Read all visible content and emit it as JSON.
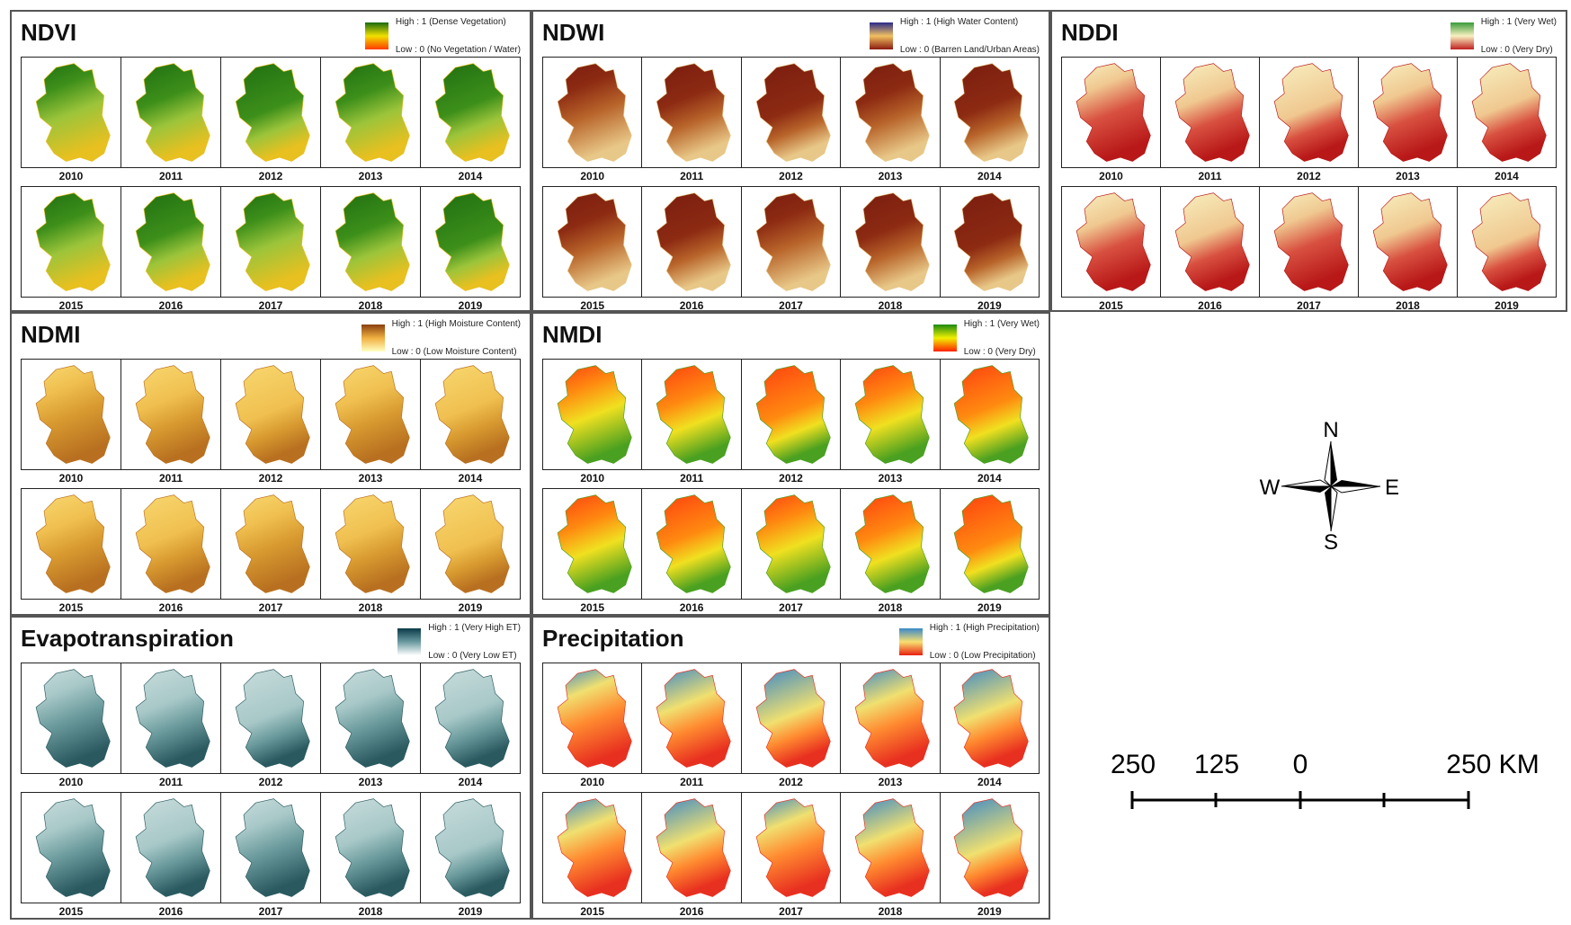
{
  "years_row1": [
    "2010",
    "2011",
    "2012",
    "2013",
    "2014"
  ],
  "years_row2": [
    "2015",
    "2016",
    "2017",
    "2018",
    "2019"
  ],
  "panels": [
    {
      "id": "ndvi",
      "title": "NDVI",
      "legend_high": "High : 1 (Dense Vegetation)",
      "legend_low": "Low : 0 (No Vegetation / Water)",
      "colors": [
        "#1f6e12",
        "#3d8f1a",
        "#9cc43a",
        "#e8c020"
      ],
      "ramp": [
        "#1a6b10",
        "#f0e000",
        "#ff3a00"
      ]
    },
    {
      "id": "ndwi",
      "title": "NDWI",
      "legend_high": "High : 1 (High Water Content)",
      "legend_low": "Low : 0 (Barren Land/Urban Areas)",
      "colors": [
        "#7a1d10",
        "#8c2a12",
        "#b8642a",
        "#e8c888"
      ],
      "ramp": [
        "#2a2a8a",
        "#f0c060",
        "#8a1a10"
      ]
    },
    {
      "id": "nddi",
      "title": "NDDI",
      "legend_high": "High : 1 (Very Wet)",
      "legend_low": "Low : 0 (Very Dry)",
      "colors": [
        "#f7f0c0",
        "#f0c890",
        "#d85040",
        "#b81818"
      ],
      "ramp": [
        "#3a9a3a",
        "#f8f0c0",
        "#c02020"
      ]
    },
    {
      "id": "ndmi",
      "title": "NDMI",
      "legend_high": "High : 1 (High Moisture Content)",
      "legend_low": "Low : 0 (Low Moisture Content)",
      "colors": [
        "#f8d870",
        "#f0c050",
        "#d89a30",
        "#b87020"
      ],
      "ramp": [
        "#8a4010",
        "#f0b040",
        "#ffffc0"
      ]
    },
    {
      "id": "nmdi",
      "title": "NMDI",
      "legend_high": "High : 1 (Very Wet)",
      "legend_low": "Low : 0 (Very Dry)",
      "colors": [
        "#ff4010",
        "#ff8a10",
        "#f0e020",
        "#4aa020"
      ],
      "ramp": [
        "#1a8a10",
        "#f0f000",
        "#ff2000"
      ]
    },
    {
      "id": "et",
      "title": "Evapotranspiration",
      "legend_high": "High : 1 (Very High ET)",
      "legend_low": "Low : 0 (Very Low ET)",
      "colors": [
        "#c8dcdc",
        "#a8c8c8",
        "#6a9a9c",
        "#2a5a60"
      ],
      "ramp": [
        "#0a3a48",
        "#6a9aa0",
        "#ffffff"
      ]
    },
    {
      "id": "precip",
      "title": "Precipitation",
      "legend_high": "High : 1 (High Precipitation)",
      "legend_low": "Low : 0 (Low Precipitation)",
      "colors": [
        "#3a88c8",
        "#f0e070",
        "#ff8a30",
        "#e83020"
      ],
      "ramp": [
        "#3a88c8",
        "#f8e070",
        "#e82010"
      ]
    }
  ],
  "compass": {
    "n": "N",
    "s": "S",
    "e": "E",
    "w": "W"
  },
  "scale": {
    "labels": [
      "250",
      "125",
      "0",
      "250 KM"
    ]
  }
}
